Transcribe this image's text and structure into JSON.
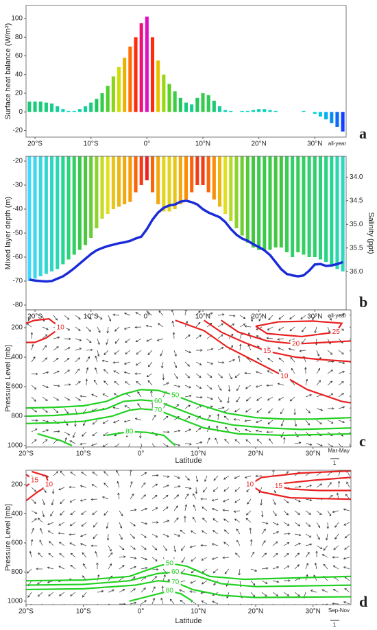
{
  "chart_data": [
    {
      "type": "bar",
      "y_label": "Surface heat balance (W/m²)",
      "annotation": "all-year",
      "panel_label": "a",
      "xlim": [
        -21.6,
        35.6
      ],
      "ylim": [
        -27,
        114
      ],
      "xticks": [
        {
          "value": -20,
          "label": "20°S"
        },
        {
          "value": -10,
          "label": "10°S"
        },
        {
          "value": 0,
          "label": "0°"
        },
        {
          "value": 10,
          "label": "10°N"
        },
        {
          "value": 20,
          "label": "20°N"
        },
        {
          "value": 30,
          "label": "30°N"
        }
      ],
      "yticks": [
        -20,
        0,
        20,
        40,
        60,
        80,
        100
      ],
      "colormap": [
        "#1040ff",
        "#00d8e8",
        "#20c860",
        "#60d020",
        "#d8e000",
        "#ff8000",
        "#ff1010",
        "#e010c0"
      ],
      "x": [
        -21,
        -20,
        -19,
        -18,
        -17,
        -16,
        -15,
        -14,
        -13,
        -12,
        -11,
        -10,
        -9,
        -8,
        -7,
        -6,
        -5,
        -4,
        -3,
        -2,
        -1,
        0,
        1,
        2,
        3,
        4,
        5,
        6,
        7,
        8,
        9,
        10,
        11,
        12,
        13,
        14,
        15,
        16,
        17,
        18,
        19,
        20,
        21,
        22,
        23,
        24,
        25,
        26,
        27,
        28,
        29,
        30,
        31,
        32,
        33,
        34,
        35
      ],
      "values": [
        11,
        11,
        11,
        10,
        9,
        6,
        3,
        1,
        1,
        3,
        6,
        10,
        14,
        20,
        28,
        38,
        48,
        58,
        70,
        80,
        95,
        102,
        80,
        55,
        40,
        30,
        22,
        15,
        10,
        8,
        15,
        20,
        18,
        12,
        6,
        2,
        1,
        0,
        1,
        1,
        2,
        3,
        3,
        2,
        1,
        0,
        0,
        0,
        0,
        1,
        0,
        -2,
        -5,
        -8,
        -12,
        -16,
        -21
      ]
    },
    {
      "type": "bar",
      "y_label": "Mixed layer depth (m)",
      "y2_label": "Salinity (ppt)",
      "annotation": "all-year",
      "panel_label": "b",
      "xlim": [
        -21.6,
        35.6
      ],
      "ylim": [
        -82,
        -18
      ],
      "y2lim": [
        36.81,
        33.56
      ],
      "xticks": [
        {
          "value": -20,
          "label": "20°S"
        },
        {
          "value": -10,
          "label": "10°S"
        },
        {
          "value": 0,
          "label": "0°"
        },
        {
          "value": 10,
          "label": "10°N"
        },
        {
          "value": 20,
          "label": "20°N"
        },
        {
          "value": 30,
          "label": "30°N"
        }
      ],
      "yticks": [
        -80,
        -70,
        -60,
        -50,
        -40,
        -30,
        -20
      ],
      "y2ticks": [
        {
          "value": 34,
          "label": "34.0"
        },
        34.5,
        {
          "value": 35,
          "label": "35.0"
        },
        35.5,
        {
          "value": 36,
          "label": "36.0"
        }
      ],
      "colormap": [
        "#40d8ff",
        "#20d890",
        "#40c840",
        "#80d030",
        "#e0e020",
        "#ff8000",
        "#f02020"
      ],
      "x": [
        -21,
        -20,
        -19,
        -18,
        -17,
        -16,
        -15,
        -14,
        -13,
        -12,
        -11,
        -10,
        -9,
        -8,
        -7,
        -6,
        -5,
        -4,
        -3,
        -2,
        -1,
        0,
        1,
        2,
        3,
        4,
        5,
        6,
        7,
        8,
        9,
        10,
        11,
        12,
        13,
        14,
        15,
        16,
        17,
        18,
        19,
        20,
        21,
        22,
        23,
        24,
        25,
        26,
        27,
        28,
        29,
        30,
        31,
        32,
        33,
        34,
        35
      ],
      "values": [
        -70,
        -69,
        -68,
        -67,
        -66,
        -65,
        -63,
        -61,
        -59,
        -57,
        -55,
        -52,
        -48,
        -44,
        -42,
        -40,
        -39,
        -38,
        -37,
        -33,
        -30,
        -28,
        -33,
        -38,
        -41,
        -41,
        -40,
        -38,
        -36,
        -33,
        -30,
        -30,
        -33,
        -36,
        -39,
        -42,
        -45,
        -48,
        -51,
        -54,
        -56,
        -57,
        -57,
        -57,
        -56,
        -56,
        -58,
        -60,
        -58,
        -59,
        -60,
        -60,
        -61,
        -62,
        -63,
        -65,
        -66
      ],
      "series": [
        {
          "axis": "y2",
          "color": "#1a2bd8",
          "values": [
            36.17,
            36.19,
            36.2,
            36.21,
            36.2,
            36.15,
            36.1,
            36.02,
            35.93,
            35.83,
            35.73,
            35.63,
            35.55,
            35.5,
            35.46,
            35.43,
            35.4,
            35.38,
            35.35,
            35.3,
            35.26,
            35.1,
            34.9,
            34.75,
            34.65,
            34.6,
            34.58,
            34.52,
            34.5,
            34.53,
            34.58,
            34.68,
            34.75,
            34.8,
            34.85,
            34.95,
            35.1,
            35.22,
            35.3,
            35.35,
            35.42,
            35.48,
            35.55,
            35.65,
            35.8,
            35.95,
            36.05,
            36.08,
            36.1,
            36.08,
            35.98,
            35.85,
            35.84,
            35.88,
            35.87,
            35.84,
            35.8
          ]
        }
      ]
    },
    {
      "type": "contour",
      "y_label": "Pressure Level [mb]",
      "x_label": "Latitude",
      "annotation": "Mar-May",
      "panel_label": "c",
      "reference_vector_label": "1",
      "xlim": [
        -20,
        36.6
      ],
      "ylim": [
        1009,
        79
      ],
      "xticks": [
        {
          "value": -20,
          "label": "20°S"
        },
        {
          "value": -10,
          "label": "10°S"
        },
        {
          "value": 0,
          "label": "0°"
        },
        {
          "value": 10,
          "label": "10°N"
        },
        {
          "value": 20,
          "label": "20°N"
        },
        {
          "value": 30,
          "label": "30°N"
        }
      ],
      "yticks": [
        200,
        400,
        600,
        800,
        1000
      ],
      "series": [
        {
          "name": "10",
          "color": "#e82020",
          "x": [
            -20,
            -18.5,
            -16.5,
            -14,
            -16,
            -18.5,
            -20
          ],
          "y": [
            300,
            300,
            270,
            200,
            140,
            150,
            170
          ]
        },
        {
          "name": "10",
          "color": "#e82020",
          "x": [
            6,
            11,
            15,
            20,
            25,
            29,
            35,
            36.6
          ],
          "y": [
            150,
            220,
            330,
            430,
            530,
            620,
            700,
            710
          ]
        },
        {
          "name": "15",
          "color": "#e82020",
          "x": [
            11,
            14,
            18,
            22,
            27,
            31,
            36.6
          ],
          "y": [
            150,
            230,
            300,
            360,
            400,
            415,
            430
          ]
        },
        {
          "name": "20",
          "color": "#e82020",
          "x": [
            14,
            17,
            22,
            27,
            32,
            36.6
          ],
          "y": [
            150,
            230,
            290,
            310,
            300,
            290
          ]
        },
        {
          "name": "25",
          "color": "#e82020",
          "x": [
            20,
            24,
            30,
            35,
            34,
            28,
            22,
            20
          ],
          "y": [
            190,
            160,
            155,
            170,
            230,
            260,
            240,
            190
          ]
        },
        {
          "name": "50",
          "color": "#20d020",
          "x": [
            -20,
            -15,
            -10,
            -6,
            -3,
            0,
            3,
            6,
            10,
            15,
            20,
            25,
            30,
            36.6
          ],
          "y": [
            745,
            740,
            730,
            700,
            650,
            620,
            625,
            660,
            720,
            780,
            810,
            820,
            820,
            810
          ]
        },
        {
          "name": "60",
          "color": "#20d020",
          "x": [
            -20,
            -15,
            -10,
            -6,
            -3,
            0,
            3,
            7,
            11,
            16,
            22,
            28,
            36.6
          ],
          "y": [
            800,
            795,
            780,
            750,
            700,
            690,
            700,
            760,
            820,
            860,
            880,
            890,
            880
          ]
        },
        {
          "name": "70",
          "color": "#20d020",
          "x": [
            -20,
            -15,
            -10,
            -5,
            -2,
            0,
            3,
            7,
            11,
            17,
            25,
            36.6
          ],
          "y": [
            850,
            845,
            835,
            800,
            760,
            750,
            760,
            820,
            880,
            920,
            930,
            920
          ]
        },
        {
          "name": "80",
          "color": "#20d020",
          "x": [
            -18,
            -14,
            -12,
            null,
            -6,
            -2,
            1,
            4,
            6
          ],
          "y": [
            920,
            965,
            1000,
            null,
            930,
            905,
            910,
            930,
            1000
          ]
        }
      ]
    },
    {
      "type": "contour",
      "y_label": "Pressure Level [mb]",
      "x_label": "Latitude",
      "annotation": "Sep-Nov",
      "panel_label": "d",
      "reference_vector_label": "1",
      "xlim": [
        -20,
        36.6
      ],
      "ylim": [
        1024,
        101
      ],
      "xticks": [
        {
          "value": -20,
          "label": "20°S"
        },
        {
          "value": -10,
          "label": "10°S"
        },
        {
          "value": 0,
          "label": "0°"
        },
        {
          "value": 10,
          "label": "10°N"
        },
        {
          "value": 20,
          "label": "20°N"
        },
        {
          "value": 30,
          "label": "30°N"
        }
      ],
      "yticks": [
        200,
        400,
        600,
        800,
        1000
      ],
      "series": [
        {
          "name": "15",
          "color": "#e82020",
          "x": [
            -20,
            -18.5,
            -20
          ],
          "y": [
            130,
            170,
            210
          ]
        },
        {
          "name": "10",
          "color": "#e82020",
          "x": [
            -20,
            -18,
            -16,
            -16.5,
            -19
          ],
          "y": [
            310,
            250,
            200,
            140,
            110
          ]
        },
        {
          "name": "15",
          "color": "#e82020",
          "x": [
            36.6,
            30,
            25,
            24,
            26,
            31,
            36.6
          ],
          "y": [
            150,
            170,
            190,
            210,
            230,
            240,
            240
          ]
        },
        {
          "name": "10",
          "color": "#e82020",
          "x": [
            36.6,
            28,
            21,
            19,
            21,
            26,
            36.6
          ],
          "y": [
            105,
            120,
            150,
            200,
            250,
            290,
            300
          ]
        },
        {
          "name": "50",
          "color": "#20d020",
          "x": [
            -20,
            -10,
            -2,
            3,
            5,
            8,
            12,
            18,
            36.6
          ],
          "y": [
            860,
            855,
            830,
            760,
            740,
            760,
            830,
            850,
            830
          ]
        },
        {
          "name": "60",
          "color": "#20d020",
          "x": [
            -20,
            -10,
            -2,
            3,
            6,
            10,
            14,
            20,
            36.6
          ],
          "y": [
            890,
            885,
            860,
            810,
            800,
            830,
            880,
            900,
            890
          ]
        },
        {
          "name": "70",
          "color": "#20d020",
          "x": [
            -20,
            -10,
            -1,
            3,
            6,
            9,
            14,
            20,
            36.6
          ],
          "y": [
            920,
            915,
            890,
            860,
            870,
            920,
            960,
            975,
            970
          ]
        },
        {
          "name": "80",
          "color": "#20d020",
          "x": [
            -2,
            2,
            5,
            7,
            9
          ],
          "y": [
            1000,
            960,
            930,
            950,
            1000
          ]
        }
      ]
    }
  ]
}
